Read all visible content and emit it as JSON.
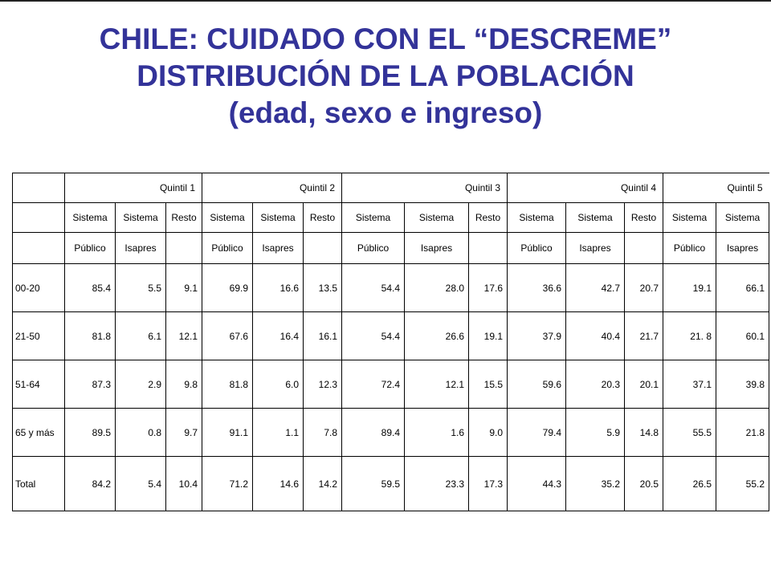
{
  "title": {
    "line1": "CHILE: CUIDADO CON EL “DESCREME”",
    "line2": "DISTRIBUCIÓN DE LA POBLACIÓN",
    "line3": "(edad, sexo e ingreso)"
  },
  "table": {
    "quintiles": [
      "Quintil 1",
      "Quintil 2",
      "Quintil 3",
      "Quintil 4",
      "Quintil 5"
    ],
    "subheader_row1": [
      "Sistema",
      "Sistema",
      "Resto",
      "Sistema",
      "Sistema",
      "Resto",
      "Sistema",
      "Sistema",
      "Resto",
      "Sistema",
      "Sistema",
      "Resto",
      "Sistema",
      "Sistema"
    ],
    "subheader_row2": [
      "Público",
      "Isapres",
      "",
      "Público",
      "Isapres",
      "",
      "Público",
      "Isapres",
      "",
      "Público",
      "Isapres",
      "",
      "Público",
      "Isapres"
    ],
    "rows": [
      {
        "label": "00-20",
        "values": [
          "85.4",
          "5.5",
          "9.1",
          "69.9",
          "16.6",
          "13.5",
          "54.4",
          "28.0",
          "17.6",
          "36.6",
          "42.7",
          "20.7",
          "19.1",
          "66.1"
        ]
      },
      {
        "label": "21-50",
        "values": [
          "81.8",
          "6.1",
          "12.1",
          "67.6",
          "16.4",
          "16.1",
          "54.4",
          "26.6",
          "19.1",
          "37.9",
          "40.4",
          "21.7",
          "21. 8",
          "60.1"
        ]
      },
      {
        "label": "51-64",
        "values": [
          "87.3",
          "2.9",
          "9.8",
          "81.8",
          "6.0",
          "12.3",
          "72.4",
          "12.1",
          "15.5",
          "59.6",
          "20.3",
          "20.1",
          "37.1",
          "39.8"
        ]
      },
      {
        "label": "65 y más",
        "values": [
          "89.5",
          "0.8",
          "9.7",
          "91.1",
          "1.1",
          "7.8",
          "89.4",
          "1.6",
          "9.0",
          "79.4",
          "5.9",
          "14.8",
          "55.5",
          "21.8"
        ]
      },
      {
        "label": "Total",
        "values": [
          "84.2",
          "5.4",
          "10.4",
          "71.2",
          "14.6",
          "14.2",
          "59.5",
          "23.3",
          "17.3",
          "44.3",
          "35.2",
          "20.5",
          "26.5",
          "55.2"
        ]
      }
    ]
  }
}
